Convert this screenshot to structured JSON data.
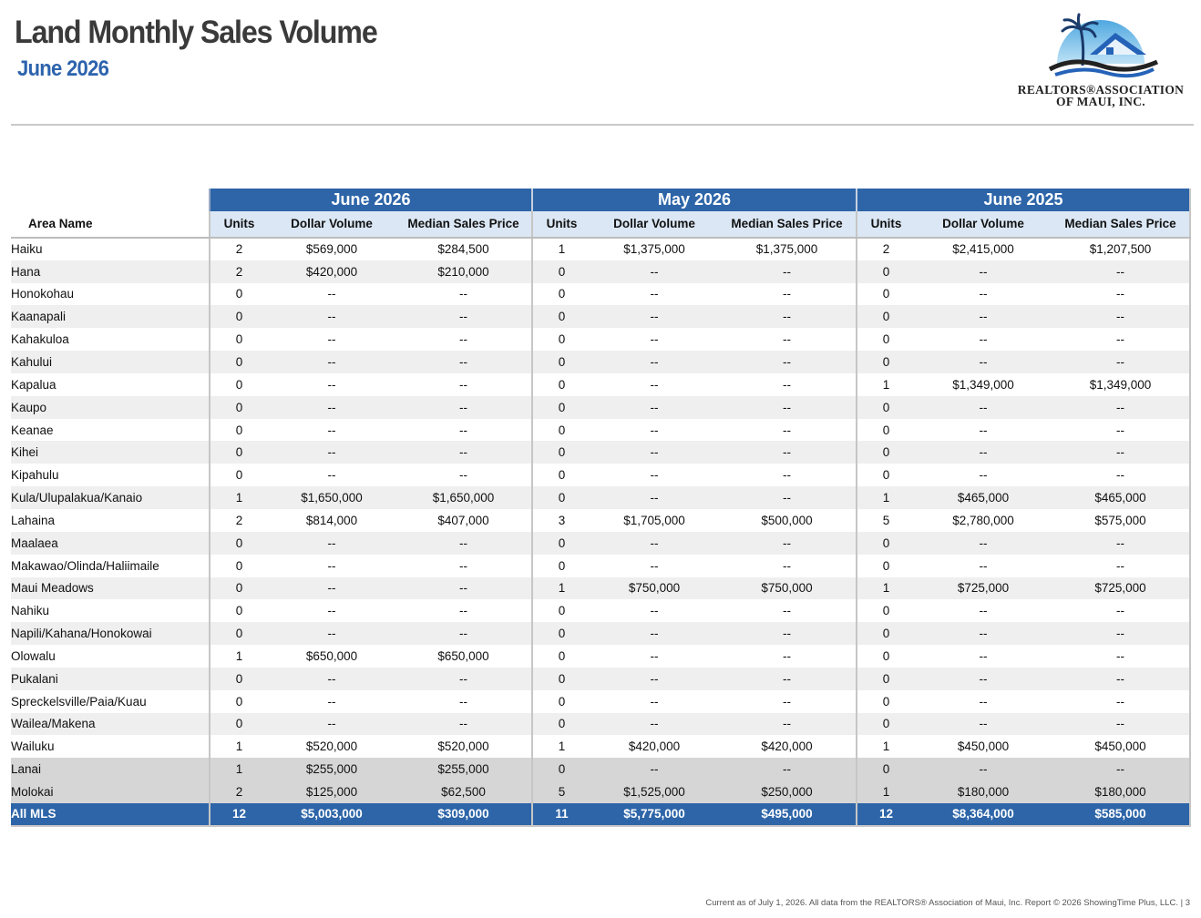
{
  "header": {
    "title": "Land Monthly Sales Volume",
    "subtitle": "June 2026",
    "logo_line1": "REALTORS®ASSOCIATION",
    "logo_line2": "OF MAUI, INC."
  },
  "table": {
    "area_header": "Area Name",
    "groups": [
      "June 2026",
      "May 2026",
      "June 2025"
    ],
    "subheaders": [
      "Units",
      "Dollar Volume",
      "Median Sales Price"
    ],
    "rows": [
      {
        "name": "Haiku",
        "v": [
          "2",
          "$569,000",
          "$284,500",
          "1",
          "$1,375,000",
          "$1,375,000",
          "2",
          "$2,415,000",
          "$1,207,500"
        ]
      },
      {
        "name": "Hana",
        "v": [
          "2",
          "$420,000",
          "$210,000",
          "0",
          "--",
          "--",
          "0",
          "--",
          "--"
        ]
      },
      {
        "name": "Honokohau",
        "v": [
          "0",
          "--",
          "--",
          "0",
          "--",
          "--",
          "0",
          "--",
          "--"
        ]
      },
      {
        "name": "Kaanapali",
        "v": [
          "0",
          "--",
          "--",
          "0",
          "--",
          "--",
          "0",
          "--",
          "--"
        ]
      },
      {
        "name": "Kahakuloa",
        "v": [
          "0",
          "--",
          "--",
          "0",
          "--",
          "--",
          "0",
          "--",
          "--"
        ]
      },
      {
        "name": "Kahului",
        "v": [
          "0",
          "--",
          "--",
          "0",
          "--",
          "--",
          "0",
          "--",
          "--"
        ]
      },
      {
        "name": "Kapalua",
        "v": [
          "0",
          "--",
          "--",
          "0",
          "--",
          "--",
          "1",
          "$1,349,000",
          "$1,349,000"
        ]
      },
      {
        "name": "Kaupo",
        "v": [
          "0",
          "--",
          "--",
          "0",
          "--",
          "--",
          "0",
          "--",
          "--"
        ]
      },
      {
        "name": "Keanae",
        "v": [
          "0",
          "--",
          "--",
          "0",
          "--",
          "--",
          "0",
          "--",
          "--"
        ]
      },
      {
        "name": "Kihei",
        "v": [
          "0",
          "--",
          "--",
          "0",
          "--",
          "--",
          "0",
          "--",
          "--"
        ]
      },
      {
        "name": "Kipahulu",
        "v": [
          "0",
          "--",
          "--",
          "0",
          "--",
          "--",
          "0",
          "--",
          "--"
        ]
      },
      {
        "name": "Kula/Ulupalakua/Kanaio",
        "v": [
          "1",
          "$1,650,000",
          "$1,650,000",
          "0",
          "--",
          "--",
          "1",
          "$465,000",
          "$465,000"
        ]
      },
      {
        "name": "Lahaina",
        "v": [
          "2",
          "$814,000",
          "$407,000",
          "3",
          "$1,705,000",
          "$500,000",
          "5",
          "$2,780,000",
          "$575,000"
        ]
      },
      {
        "name": "Maalaea",
        "v": [
          "0",
          "--",
          "--",
          "0",
          "--",
          "--",
          "0",
          "--",
          "--"
        ]
      },
      {
        "name": "Makawao/Olinda/Haliimaile",
        "v": [
          "0",
          "--",
          "--",
          "0",
          "--",
          "--",
          "0",
          "--",
          "--"
        ]
      },
      {
        "name": "Maui Meadows",
        "v": [
          "0",
          "--",
          "--",
          "1",
          "$750,000",
          "$750,000",
          "1",
          "$725,000",
          "$725,000"
        ]
      },
      {
        "name": "Nahiku",
        "v": [
          "0",
          "--",
          "--",
          "0",
          "--",
          "--",
          "0",
          "--",
          "--"
        ]
      },
      {
        "name": "Napili/Kahana/Honokowai",
        "v": [
          "0",
          "--",
          "--",
          "0",
          "--",
          "--",
          "0",
          "--",
          "--"
        ]
      },
      {
        "name": "Olowalu",
        "v": [
          "1",
          "$650,000",
          "$650,000",
          "0",
          "--",
          "--",
          "0",
          "--",
          "--"
        ]
      },
      {
        "name": "Pukalani",
        "v": [
          "0",
          "--",
          "--",
          "0",
          "--",
          "--",
          "0",
          "--",
          "--"
        ]
      },
      {
        "name": "Spreckelsville/Paia/Kuau",
        "v": [
          "0",
          "--",
          "--",
          "0",
          "--",
          "--",
          "0",
          "--",
          "--"
        ]
      },
      {
        "name": "Wailea/Makena",
        "v": [
          "0",
          "--",
          "--",
          "0",
          "--",
          "--",
          "0",
          "--",
          "--"
        ]
      },
      {
        "name": "Wailuku",
        "v": [
          "1",
          "$520,000",
          "$520,000",
          "1",
          "$420,000",
          "$420,000",
          "1",
          "$450,000",
          "$450,000"
        ]
      }
    ],
    "island_rows": [
      {
        "name": "Lanai",
        "v": [
          "1",
          "$255,000",
          "$255,000",
          "0",
          "--",
          "--",
          "0",
          "--",
          "--"
        ]
      },
      {
        "name": "Molokai",
        "v": [
          "2",
          "$125,000",
          "$62,500",
          "5",
          "$1,525,000",
          "$250,000",
          "1",
          "$180,000",
          "$180,000"
        ]
      }
    ],
    "total": {
      "name": "All MLS",
      "v": [
        "12",
        "$5,003,000",
        "$309,000",
        "11",
        "$5,775,000",
        "$495,000",
        "12",
        "$8,364,000",
        "$585,000"
      ]
    }
  },
  "footer": {
    "text": "Current as of July 1, 2026. All data from the REALTORS® Association of Maui, Inc. Report © 2026 ShowingTime Plus, LLC.  |  3"
  },
  "colors": {
    "accent": "#2d65a8",
    "subheader_bg": "#dbe7f4",
    "stripe": "#efefef",
    "island_bg": "#d6d6d6"
  }
}
